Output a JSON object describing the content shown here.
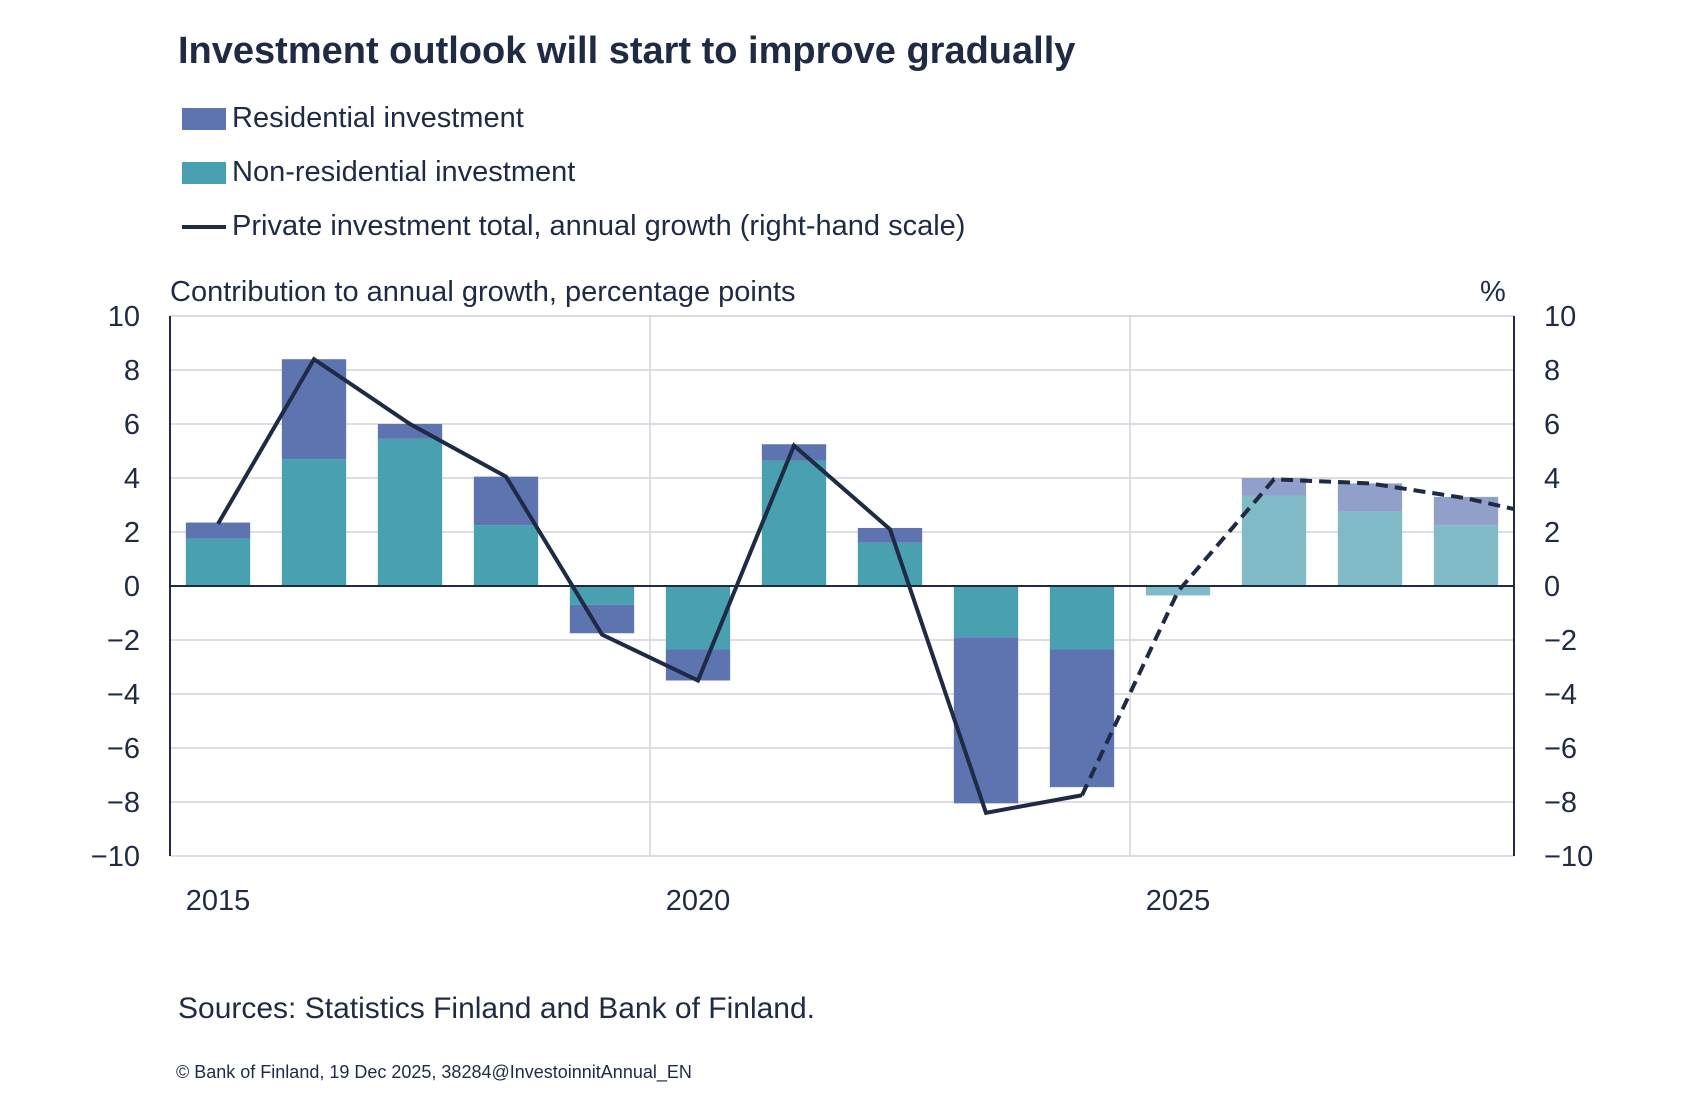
{
  "chart_data": {
    "type": "bar",
    "stacked": true,
    "title": "Investment outlook will start to improve gradually",
    "ylabel": "Contribution to annual growth, percentage points",
    "y2label": "%",
    "ylim": [
      -10,
      10
    ],
    "y2lim": [
      -10,
      10
    ],
    "yticks": [
      10,
      8,
      6,
      4,
      2,
      0,
      -2,
      -4,
      -6,
      -8,
      -10
    ],
    "xtick_labels": [
      "2015",
      "2020",
      "2025"
    ],
    "grid": true,
    "legend_position": "top-left",
    "categories": [
      2015,
      2016,
      2017,
      2018,
      2019,
      2020,
      2021,
      2022,
      2023,
      2024,
      2025,
      2026,
      2027,
      2028
    ],
    "forecast_from": 2025,
    "series": [
      {
        "name": "Residential investment",
        "kind": "bar",
        "color": "#5e74b0",
        "forecast_color": "#919fcb",
        "values": [
          0.6,
          3.7,
          0.55,
          1.8,
          -1.05,
          -1.15,
          0.6,
          0.55,
          -6.15,
          -5.1,
          0.0,
          0.65,
          1.05,
          1.05
        ]
      },
      {
        "name": "Non-residential investment",
        "kind": "bar",
        "color": "#49a0b0",
        "forecast_color": "#80bac6",
        "values": [
          1.75,
          4.7,
          5.45,
          2.25,
          -0.7,
          -2.35,
          4.65,
          1.6,
          -1.9,
          -2.35,
          -0.35,
          3.35,
          2.75,
          2.25
        ]
      },
      {
        "name": "Private investment total, annual growth (right-hand scale)",
        "kind": "line",
        "axis": "right",
        "color": "#1f2a44",
        "x": [
          2015,
          2016,
          2017,
          2018,
          2019,
          2020,
          2021,
          2022,
          2023,
          2024,
          2025,
          2026,
          2027,
          2028,
          2029
        ],
        "values": [
          2.3,
          8.4,
          6.0,
          4.05,
          -1.8,
          -3.5,
          5.2,
          2.1,
          -8.4,
          -7.75,
          -0.2,
          3.95,
          3.8,
          3.25,
          2.45
        ]
      }
    ]
  },
  "footer": {
    "sources": "Sources: Statistics Finland and Bank of Finland.",
    "copyright": "© Bank of Finland, 19 Dec 2025, 38284@InvestoinnitAnnual_EN"
  }
}
